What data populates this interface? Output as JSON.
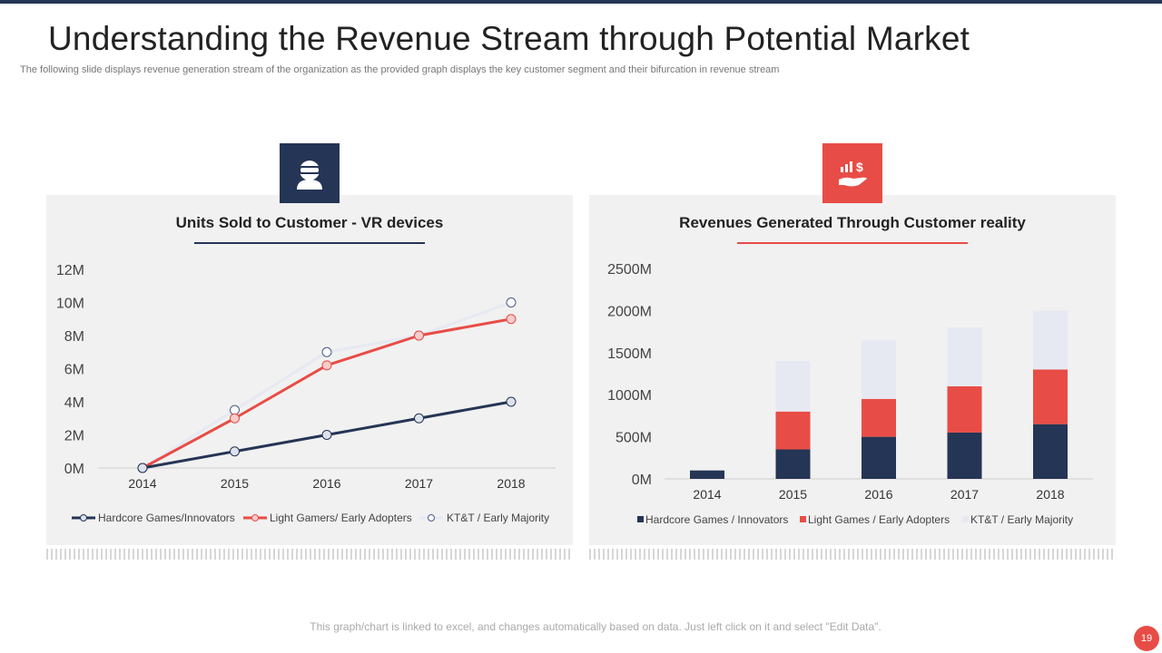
{
  "slide": {
    "title": "Understanding the Revenue Stream through Potential Market",
    "subtitle": "The following slide displays revenue generation stream of the organization as the provided graph displays the key customer segment and their bifurcation in revenue stream",
    "footnote": "This graph/chart is linked to excel, and changes automatically based on data. Just left click on it and select \"Edit Data\".",
    "page_number": "19"
  },
  "icons": {
    "left": "vr-headset-icon",
    "right": "revenue-hand-icon"
  },
  "colors": {
    "navy": "#253555",
    "red": "#e84c46",
    "light": "#e6e9f2"
  },
  "chart_data": [
    {
      "type": "line",
      "title": "Units Sold to Customer  - VR devices",
      "x": [
        "2014",
        "2015",
        "2016",
        "2017",
        "2018"
      ],
      "ylim": [
        0,
        12
      ],
      "yticks": [
        "0M",
        "2M",
        "4M",
        "6M",
        "8M",
        "10M",
        "12M"
      ],
      "series": [
        {
          "name": "Hardcore Games/Innovators",
          "values": [
            0,
            1,
            2,
            3,
            4
          ]
        },
        {
          "name": "Light Gamers/ Early Adopters",
          "values": [
            0,
            3,
            6.2,
            8,
            9
          ]
        },
        {
          "name": "KT&T / Early Majority",
          "values": [
            0,
            3.5,
            7,
            8,
            10
          ]
        }
      ]
    },
    {
      "type": "bar",
      "stacked": true,
      "title": "Revenues Generated Through Customer reality",
      "categories": [
        "2014",
        "2015",
        "2016",
        "2017",
        "2018"
      ],
      "ylim": [
        0,
        2500
      ],
      "yticks": [
        "0M",
        "500M",
        "1000M",
        "1500M",
        "2000M",
        "2500M"
      ],
      "series": [
        {
          "name": "Hardcore Games / Innovators",
          "values": [
            100,
            350,
            500,
            550,
            650
          ]
        },
        {
          "name": "Light Games / Early Adopters",
          "values": [
            0,
            450,
            450,
            550,
            650
          ]
        },
        {
          "name": "KT&T / Early Majority",
          "values": [
            0,
            600,
            700,
            700,
            700
          ]
        }
      ]
    }
  ]
}
